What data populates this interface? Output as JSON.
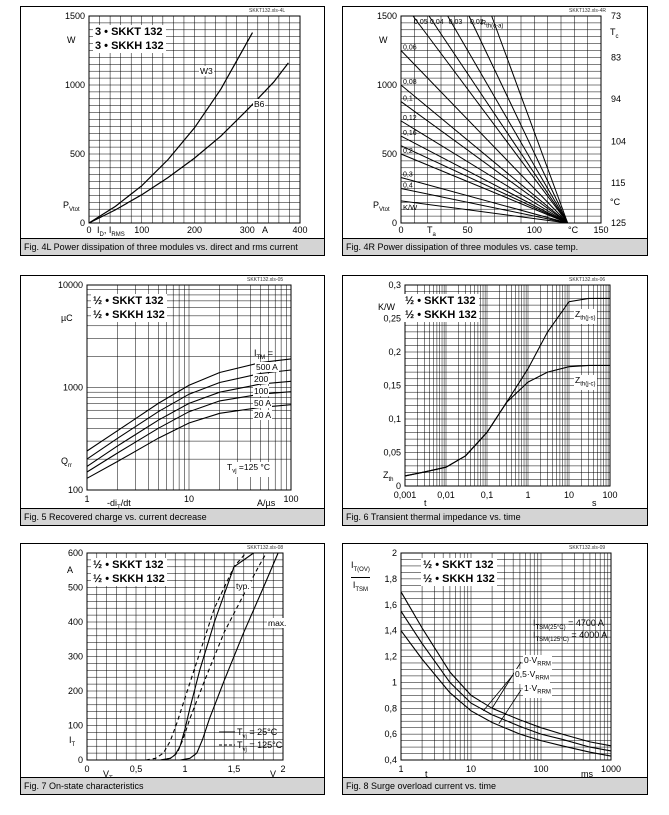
{
  "chart_data": [
    {
      "id": "fig4L",
      "type": "line",
      "caption": "Fig. 4L Power dissipation of three modules vs. direct and rms current",
      "file_id": "SKKT132.xls-4L",
      "title_lines": [
        "3 • SKKT 132",
        "3 • SKKH 132"
      ],
      "ylabel": "P",
      "ylabel_sub": "Vtot",
      "yunit": "W",
      "xlabel_parts": [
        "I",
        "D",
        ", I",
        "RMS"
      ],
      "xunit": "A",
      "xlim": [
        0,
        400
      ],
      "ylim": [
        0,
        1500
      ],
      "xticks": [
        "0",
        "100",
        "200",
        "300",
        "400"
      ],
      "yticks": [
        "0",
        "500",
        "1000",
        "1500"
      ],
      "series": [
        {
          "name": "W3",
          "x": [
            0,
            50,
            100,
            150,
            200,
            250,
            310
          ],
          "y": [
            0,
            120,
            270,
            460,
            690,
            970,
            1380
          ]
        },
        {
          "name": "B6",
          "x": [
            0,
            50,
            100,
            150,
            200,
            250,
            300,
            350,
            378
          ],
          "y": [
            0,
            95,
            205,
            330,
            470,
            630,
            820,
            1020,
            1160
          ]
        }
      ]
    },
    {
      "id": "fig4R",
      "type": "line",
      "caption": "Fig. 4R Power dissipation of three modules vs. case temp.",
      "file_id": "SKKT132.xls-4R",
      "ylabel": "P",
      "ylabel_sub": "Vtot",
      "yunit": "W",
      "xlabel": "T",
      "xlabel_sub": "a",
      "xunit": "°C",
      "xlim": [
        0,
        150
      ],
      "ylim": [
        0,
        1500
      ],
      "xticks": [
        "0",
        "50",
        "100",
        "150"
      ],
      "yticks": [
        "0",
        "500",
        "1000",
        "1500"
      ],
      "right_axis_label": "T",
      "right_axis_sub": "c",
      "right_axis_unit": "°C",
      "right_ticks": [
        {
          "label": "73",
          "y": 1500
        },
        {
          "label": "83",
          "y": 1200
        },
        {
          "label": "94",
          "y": 900
        },
        {
          "label": "104",
          "y": 590
        },
        {
          "label": "115",
          "y": 290
        },
        {
          "label": "125",
          "y": 0
        }
      ],
      "rth_label": "R",
      "rth_sub": "th(c-a)",
      "kw_label": "K/W",
      "convergence_x": 125,
      "lines": [
        {
          "label": "0,05",
          "x_top": 9,
          "y_end": 1500
        },
        {
          "label": "0,04",
          "x_top": 21,
          "y_end": 1500
        },
        {
          "label": "0,03",
          "x_top": 35,
          "y_end": 1500
        },
        {
          "label": "0,02",
          "x_top": 51,
          "y_end": 1500
        },
        {
          "label": "",
          "x_top": 68,
          "y_end": 1500
        },
        {
          "label": "0,06",
          "x_top": 0,
          "y_end": 1250
        },
        {
          "label": "0,08",
          "x_top": 0,
          "y_end": 1000
        },
        {
          "label": "0,1",
          "x_top": 0,
          "y_end": 880
        },
        {
          "label": "0,12",
          "x_top": 0,
          "y_end": 740
        },
        {
          "label": "0,16",
          "x_top": 0,
          "y_end": 630
        },
        {
          "label": "",
          "x_top": 0,
          "y_end": 560
        },
        {
          "label": "0,2",
          "x_top": 0,
          "y_end": 500
        },
        {
          "label": "0,3",
          "x_top": 0,
          "y_end": 330
        },
        {
          "label": "0,4",
          "x_top": 0,
          "y_end": 250
        },
        {
          "label": "",
          "x_top": 0,
          "y_end": 160
        }
      ]
    },
    {
      "id": "fig5",
      "type": "line",
      "caption": "Fig. 5 Recovered charge vs. current decrease",
      "file_id": "SKKT132.xls-05",
      "title_lines": [
        "½ • SKKT 132",
        "½ • SKKH 132"
      ],
      "ylabel": "Q",
      "ylabel_sub": "rr",
      "yunit": "µC",
      "xlabel": "-di",
      "xlabel_sub": "T",
      "xlabel_tail": "/dt",
      "xunit": "A/µs",
      "xscale": "log",
      "yscale": "log",
      "xlim": [
        1,
        100
      ],
      "ylim": [
        100,
        10000
      ],
      "xticks": [
        "1",
        "10",
        "100"
      ],
      "yticks": [
        "100",
        "1000",
        "10000"
      ],
      "legend_header": "I",
      "legend_header_sub": "TM",
      "legend_header_tail": " =",
      "annotation": "T",
      "annotation_sub": "vj",
      "annotation_tail": " =125 °C",
      "x": [
        1,
        2,
        5,
        10,
        20,
        50,
        100
      ],
      "series": [
        {
          "name": "500 A",
          "values": [
            240,
            380,
            700,
            1050,
            1400,
            1750,
            1900
          ]
        },
        {
          "name": "200",
          "values": [
            200,
            320,
            580,
            860,
            1120,
            1370,
            1480
          ]
        },
        {
          "name": "100",
          "values": [
            170,
            270,
            480,
            700,
            900,
            1080,
            1150
          ]
        },
        {
          "name": "50 A",
          "values": [
            150,
            230,
            400,
            580,
            740,
            860,
            910
          ]
        },
        {
          "name": "20 A",
          "values": [
            130,
            190,
            320,
            450,
            560,
            640,
            680
          ]
        }
      ]
    },
    {
      "id": "fig6",
      "type": "line",
      "caption": "Fig. 6 Transient thermal impedance vs. time",
      "file_id": "SKKT132.xls-06",
      "title_lines": [
        "½ • SKKT 132",
        "½ • SKKH 132"
      ],
      "ylabel": "Z",
      "ylabel_sub": "th",
      "yunit": "K/W",
      "xlabel": "t",
      "xunit": "s",
      "xscale": "log",
      "xlim": [
        0.001,
        100
      ],
      "ylim": [
        0,
        0.3
      ],
      "xticks": [
        "0,001",
        "0,01",
        "0,1",
        "1",
        "10",
        "100"
      ],
      "yticks": [
        "0",
        "0,05",
        "0,1",
        "0,15",
        "0,2",
        "0,25",
        "0,3"
      ],
      "series": [
        {
          "name": "Z",
          "name_sub": "th(j-s)",
          "x": [
            0.001,
            0.003,
            0.01,
            0.03,
            0.1,
            0.3,
            1,
            3,
            10,
            30,
            100
          ],
          "y": [
            0.015,
            0.021,
            0.028,
            0.045,
            0.08,
            0.125,
            0.175,
            0.23,
            0.275,
            0.28,
            0.28
          ]
        },
        {
          "name": "Z",
          "name_sub": "th(j-c)",
          "x": [
            0.001,
            0.003,
            0.01,
            0.03,
            0.1,
            0.3,
            1,
            3,
            10,
            30,
            100
          ],
          "y": [
            0.015,
            0.021,
            0.028,
            0.045,
            0.08,
            0.125,
            0.155,
            0.17,
            0.178,
            0.18,
            0.18
          ]
        }
      ]
    },
    {
      "id": "fig7",
      "type": "line",
      "caption": "Fig. 7 On-state characteristics",
      "file_id": "SKKT132.xls-08",
      "title_lines": [
        "½ • SKKT 132",
        "½ • SKKH 132"
      ],
      "ylabel": "I",
      "ylabel_sub": "T",
      "yunit": "A",
      "xlabel": "V",
      "xlabel_sub": "T",
      "xunit": "V",
      "xlim": [
        0,
        2
      ],
      "ylim": [
        0,
        600
      ],
      "xticks": [
        "0",
        "0,5",
        "1",
        "1,5",
        "2"
      ],
      "yticks": [
        "0",
        "100",
        "200",
        "300",
        "400",
        "500",
        "600"
      ],
      "labels": [
        "typ.",
        "max."
      ],
      "legend": [
        {
          "prefix": "T",
          "sub": "vj",
          "text": " =  25°C",
          "style": "solid"
        },
        {
          "prefix": "T",
          "sub": "vj",
          "text": " = 125°C",
          "style": "dashed"
        }
      ],
      "series": [
        {
          "name": "typ. 25°C",
          "style": "solid",
          "x": [
            0.75,
            0.85,
            0.9,
            0.95,
            1.0,
            1.05,
            1.15,
            1.3,
            1.5,
            1.7
          ],
          "y": [
            0,
            5,
            15,
            40,
            90,
            150,
            260,
            400,
            560,
            600
          ]
        },
        {
          "name": "typ. 125°C",
          "style": "dashed",
          "x": [
            0.6,
            0.7,
            0.78,
            0.85,
            0.92,
            1.0,
            1.15,
            1.3,
            1.5,
            1.62
          ],
          "y": [
            0,
            5,
            20,
            55,
            110,
            180,
            310,
            440,
            560,
            600
          ]
        },
        {
          "name": "max. 25°C",
          "style": "solid",
          "x": [
            0.95,
            1.05,
            1.12,
            1.18,
            1.25,
            1.4,
            1.6,
            1.8,
            1.95
          ],
          "y": [
            0,
            5,
            20,
            60,
            120,
            230,
            370,
            500,
            600
          ]
        },
        {
          "name": "max. 125°C",
          "style": "dashed",
          "x": [
            0.75,
            0.85,
            0.92,
            0.98,
            1.05,
            1.2,
            1.4,
            1.6,
            1.75,
            1.83
          ],
          "y": [
            0,
            5,
            20,
            60,
            120,
            230,
            370,
            480,
            560,
            600
          ]
        }
      ]
    },
    {
      "id": "fig8",
      "type": "line",
      "caption": "Fig. 8 Surge overload current vs. time",
      "file_id": "SKKT132.xls-09",
      "title_lines": [
        "½ • SKKT 132",
        "½ • SKKH 132"
      ],
      "ylabel_num": "I",
      "ylabel_num_sub": "T(OV)",
      "ylabel_den": "I",
      "ylabel_den_sub": "TSM",
      "xlabel": "t",
      "xunit": "ms",
      "xscale": "log",
      "xlim": [
        1,
        1000
      ],
      "ylim": [
        0.4,
        2
      ],
      "xticks": [
        "1",
        "10",
        "100",
        "1000"
      ],
      "yticks": [
        "0,4",
        "0,6",
        "0,8",
        "1",
        "1,2",
        "1,4",
        "1,6",
        "1,8",
        "2"
      ],
      "itsm": [
        {
          "prefix": "I",
          "sub": "TSM(25°C)",
          "text": " = 4700 A"
        },
        {
          "prefix": "I",
          "sub": "TSM(125°C)",
          "text": " = 4000 A"
        }
      ],
      "x": [
        1,
        2,
        5,
        10,
        20,
        50,
        100,
        200,
        500,
        1000
      ],
      "series": [
        {
          "name": "0·V",
          "name_sub": "RRM",
          "values": [
            1.7,
            1.42,
            1.08,
            0.9,
            0.8,
            0.71,
            0.65,
            0.6,
            0.54,
            0.51
          ]
        },
        {
          "name": "0,5·V",
          "name_sub": "RRM",
          "values": [
            1.55,
            1.3,
            1.0,
            0.84,
            0.75,
            0.66,
            0.6,
            0.56,
            0.5,
            0.47
          ]
        },
        {
          "name": "1·V",
          "name_sub": "RRM",
          "values": [
            1.4,
            1.18,
            0.92,
            0.78,
            0.69,
            0.6,
            0.55,
            0.51,
            0.46,
            0.43
          ]
        }
      ]
    }
  ]
}
